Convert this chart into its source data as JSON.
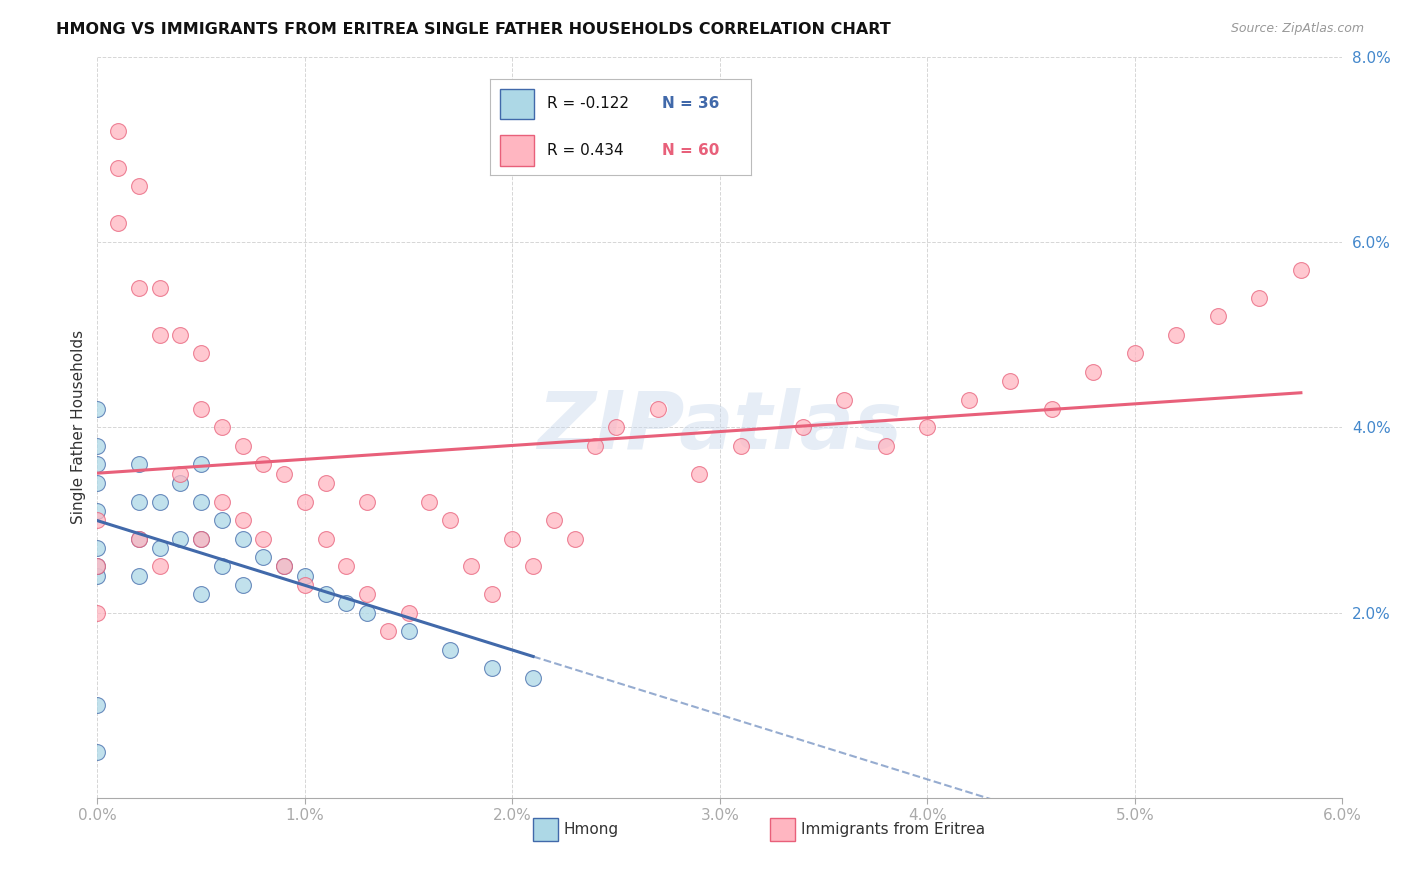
{
  "title": "HMONG VS IMMIGRANTS FROM ERITREA SINGLE FATHER HOUSEHOLDS CORRELATION CHART",
  "source": "Source: ZipAtlas.com",
  "ylabel": "Single Father Households",
  "xlim": [
    0.0,
    0.06
  ],
  "ylim": [
    0.0,
    0.08
  ],
  "xticks": [
    0.0,
    0.01,
    0.02,
    0.03,
    0.04,
    0.05,
    0.06
  ],
  "yticks": [
    0.0,
    0.02,
    0.04,
    0.06,
    0.08
  ],
  "xtick_labels": [
    "0.0%",
    "1.0%",
    "2.0%",
    "3.0%",
    "4.0%",
    "5.0%",
    "6.0%"
  ],
  "ytick_labels": [
    "",
    "2.0%",
    "4.0%",
    "6.0%",
    "8.0%"
  ],
  "legend_label1": "Hmong",
  "legend_label2": "Immigrants from Eritrea",
  "R1": -0.122,
  "N1": 36,
  "R2": 0.434,
  "N2": 60,
  "color1": "#ADD8E6",
  "color2": "#FFB6C1",
  "line_color1": "#4169AA",
  "line_color2": "#E8607A",
  "watermark": "ZIPatlas",
  "hmong_x": [
    0.0,
    0.0,
    0.0,
    0.0,
    0.0,
    0.0,
    0.0,
    0.0,
    0.0,
    0.0,
    0.002,
    0.002,
    0.002,
    0.002,
    0.003,
    0.003,
    0.004,
    0.004,
    0.005,
    0.005,
    0.005,
    0.005,
    0.006,
    0.006,
    0.007,
    0.007,
    0.008,
    0.009,
    0.01,
    0.011,
    0.012,
    0.013,
    0.015,
    0.017,
    0.019,
    0.021
  ],
  "hmong_y": [
    0.005,
    0.01,
    0.024,
    0.027,
    0.031,
    0.034,
    0.038,
    0.042,
    0.036,
    0.025,
    0.036,
    0.032,
    0.028,
    0.024,
    0.032,
    0.027,
    0.034,
    0.028,
    0.036,
    0.032,
    0.028,
    0.022,
    0.03,
    0.025,
    0.028,
    0.023,
    0.026,
    0.025,
    0.024,
    0.022,
    0.021,
    0.02,
    0.018,
    0.016,
    0.014,
    0.013
  ],
  "eritrea_x": [
    0.0,
    0.0,
    0.0,
    0.001,
    0.001,
    0.001,
    0.002,
    0.002,
    0.002,
    0.003,
    0.003,
    0.003,
    0.004,
    0.004,
    0.005,
    0.005,
    0.005,
    0.006,
    0.006,
    0.007,
    0.007,
    0.008,
    0.008,
    0.009,
    0.009,
    0.01,
    0.01,
    0.011,
    0.011,
    0.012,
    0.013,
    0.013,
    0.014,
    0.015,
    0.016,
    0.017,
    0.018,
    0.019,
    0.02,
    0.021,
    0.022,
    0.023,
    0.024,
    0.025,
    0.027,
    0.029,
    0.031,
    0.034,
    0.036,
    0.038,
    0.04,
    0.042,
    0.044,
    0.046,
    0.048,
    0.05,
    0.052,
    0.054,
    0.056,
    0.058
  ],
  "eritrea_y": [
    0.025,
    0.03,
    0.02,
    0.072,
    0.068,
    0.062,
    0.066,
    0.055,
    0.028,
    0.055,
    0.05,
    0.025,
    0.05,
    0.035,
    0.048,
    0.042,
    0.028,
    0.04,
    0.032,
    0.038,
    0.03,
    0.036,
    0.028,
    0.035,
    0.025,
    0.032,
    0.023,
    0.034,
    0.028,
    0.025,
    0.032,
    0.022,
    0.018,
    0.02,
    0.032,
    0.03,
    0.025,
    0.022,
    0.028,
    0.025,
    0.03,
    0.028,
    0.038,
    0.04,
    0.042,
    0.035,
    0.038,
    0.04,
    0.043,
    0.038,
    0.04,
    0.043,
    0.045,
    0.042,
    0.046,
    0.048,
    0.05,
    0.052,
    0.054,
    0.057
  ]
}
